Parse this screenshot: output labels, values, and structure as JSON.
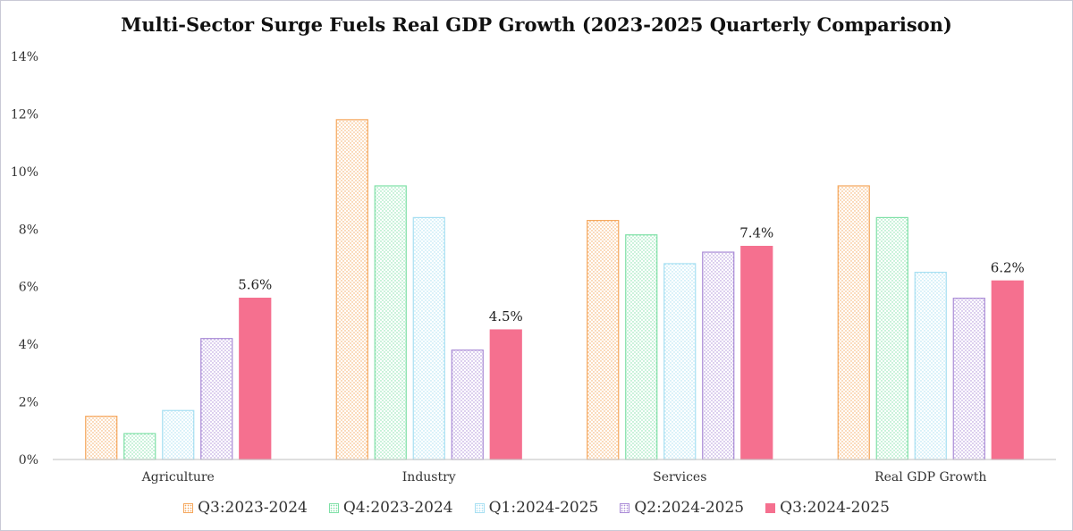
{
  "chart_data": {
    "type": "bar",
    "title": "Multi-Sector Surge Fuels Real GDP Growth (2023-2025 Quarterly Comparison)",
    "xlabel": "",
    "ylabel": "",
    "categories": [
      "Agriculture",
      "Industry",
      "Services",
      "Real GDP Growth"
    ],
    "ylim": [
      0,
      14
    ],
    "yticks": [
      0,
      2,
      4,
      6,
      8,
      10,
      12,
      14
    ],
    "ytick_labels": [
      "0%",
      "2%",
      "4%",
      "6%",
      "8%",
      "10%",
      "12%",
      "14%"
    ],
    "grid": false,
    "legend_position": "bottom",
    "series": [
      {
        "name": "Q3:2023-2024",
        "values": [
          1.5,
          11.8,
          8.3,
          9.5
        ],
        "color": "#f5a65b",
        "pattern": "dotted"
      },
      {
        "name": "Q4:2023-2024",
        "values": [
          0.9,
          9.5,
          7.8,
          8.4
        ],
        "color": "#7ee0a6",
        "pattern": "dotted"
      },
      {
        "name": "Q1:2024-2025",
        "values": [
          1.7,
          8.4,
          6.8,
          6.5
        ],
        "color": "#a6dff2",
        "pattern": "dotted"
      },
      {
        "name": "Q2:2024-2025",
        "values": [
          4.2,
          3.8,
          7.2,
          5.6
        ],
        "color": "#a98ad6",
        "pattern": "dotted"
      },
      {
        "name": "Q3:2024-2025",
        "values": [
          5.6,
          4.5,
          7.4,
          6.2
        ],
        "color": "#f5708f",
        "pattern": "solid"
      }
    ],
    "data_labels": [
      {
        "series": 4,
        "category": 0,
        "text": "5.6%"
      },
      {
        "series": 4,
        "category": 1,
        "text": "4.5%"
      },
      {
        "series": 4,
        "category": 2,
        "text": "7.4%"
      },
      {
        "series": 4,
        "category": 3,
        "text": "6.2%"
      }
    ]
  }
}
